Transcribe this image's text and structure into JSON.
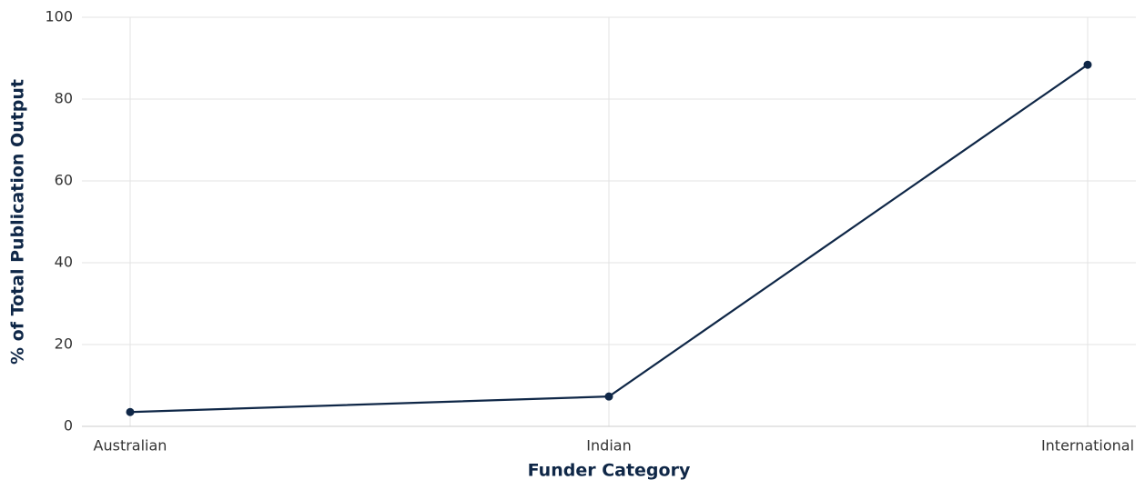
{
  "chart_data": {
    "type": "line",
    "x_label": "Funder Category",
    "y_label": "% of Total Publication Output",
    "categories": [
      "Australian",
      "Indian",
      "International"
    ],
    "series": [
      {
        "name": "% of Total Publication Output",
        "color": "#0f2747",
        "values": [
          3.5,
          7.3,
          88.4
        ]
      }
    ],
    "ylim": [
      0,
      100
    ],
    "yticks": [
      0,
      20,
      40,
      60,
      80,
      100
    ],
    "grid": true
  }
}
